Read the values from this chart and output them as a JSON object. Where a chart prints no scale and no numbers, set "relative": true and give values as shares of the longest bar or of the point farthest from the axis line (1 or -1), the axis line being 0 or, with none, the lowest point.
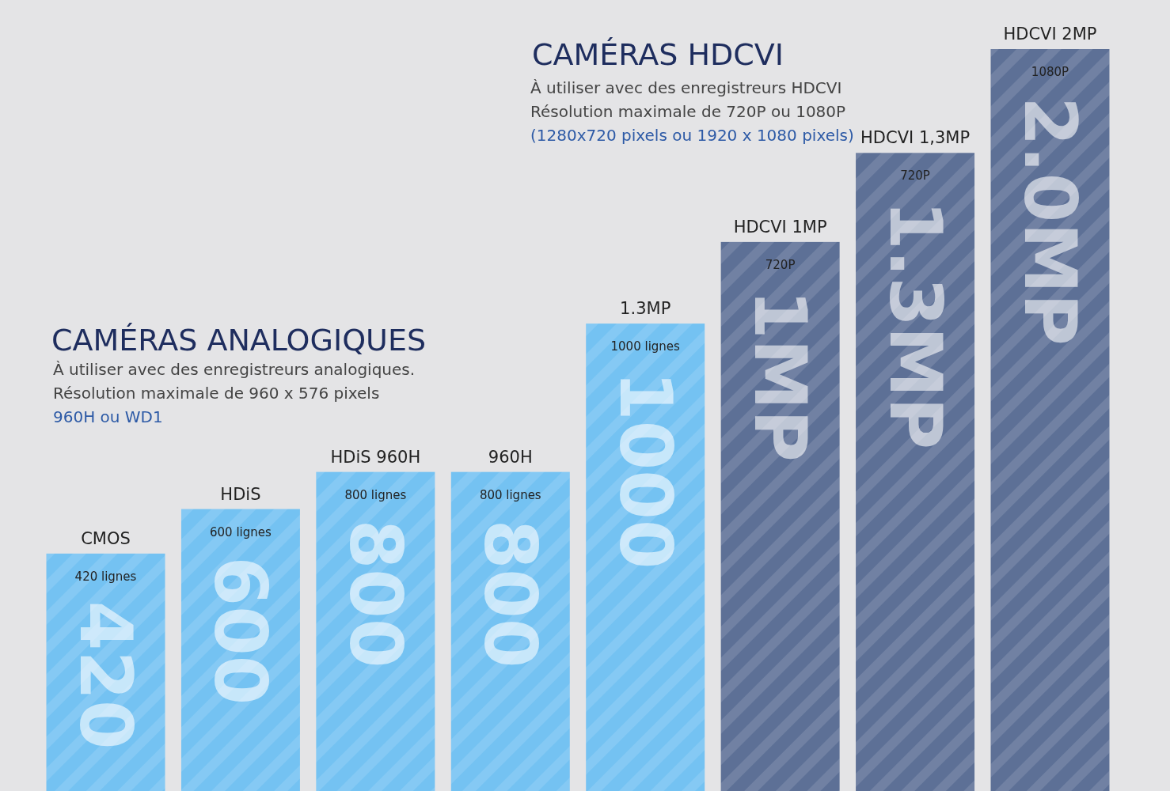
{
  "chart_data": {
    "type": "bar",
    "relative": true,
    "categories": [
      "CMOS",
      "HDiS",
      "HDiS 960H",
      "960H",
      "1.3MP",
      "HDCVI 1MP",
      "HDCVI 1,3MP",
      "HDCVI 2MP"
    ],
    "values": [
      0.32,
      0.38,
      0.43,
      0.43,
      0.63,
      0.74,
      0.86,
      1
    ],
    "colors": [
      "#74c2f2",
      "#74c2f2",
      "#74c2f2",
      "#74c2f2",
      "#74c2f2",
      "#5d7096",
      "#5d7096",
      "#5d7096"
    ],
    "annotations": [
      "CAMÉRAS ANALOGIQUES",
      "À utiliser avec des enregistreurs analogiques.",
      "Résolution maximale de 960 x 576 pixels",
      "960H ou WD1",
      "CAMÉRAS HDCVI",
      "À utiliser avec des enregistreurs HDCVI",
      "Résolution maximale de 720P ou 1080P",
      "(1280x720 pixels ou 1920 x 1080 pixels)",
      "420 lignes",
      "420",
      "600 lignes",
      "600",
      "800 lignes",
      "800",
      "800 lignes",
      "800",
      "1000 lignes",
      "1000",
      "720P",
      "1MP",
      "720P",
      "1.3MP",
      "1080P",
      "2.0MP"
    ]
  }
}
